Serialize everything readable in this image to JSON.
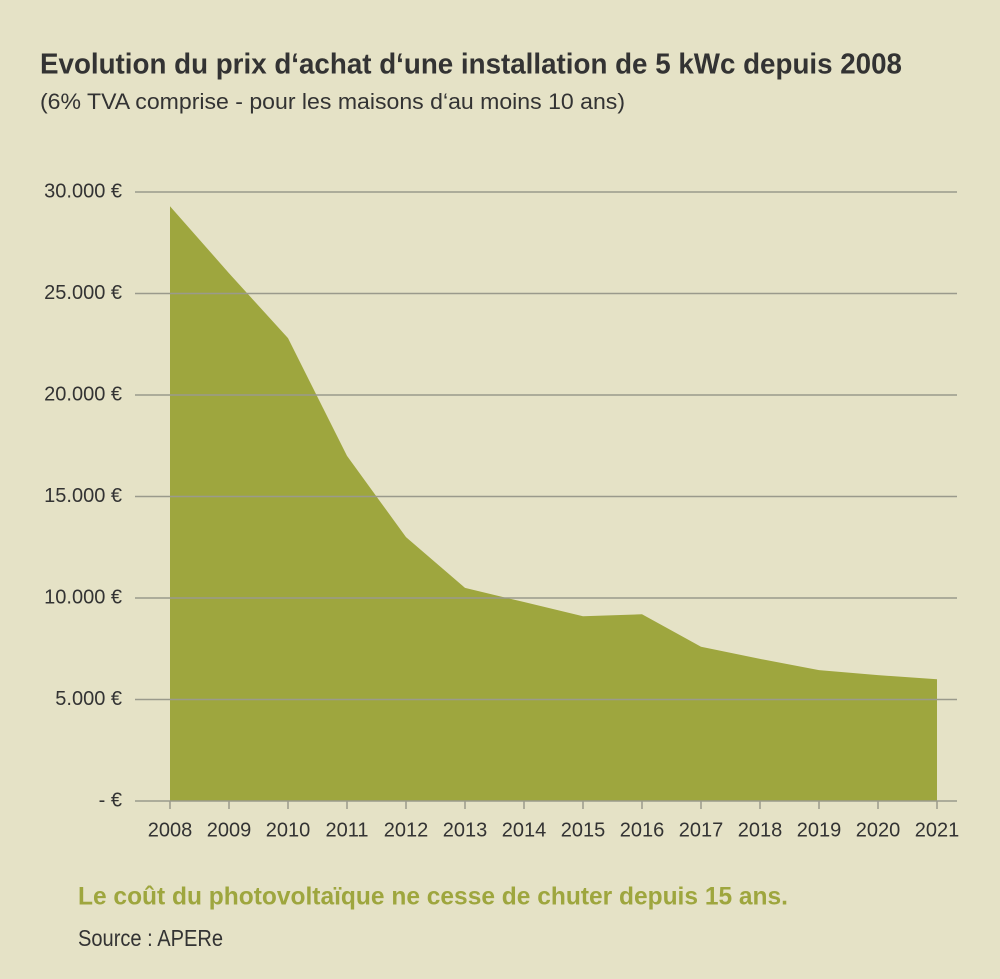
{
  "chart_data": {
    "type": "area",
    "title": "Evolution du prix d‘achat d‘une installation de 5 kWc depuis 2008",
    "subtitle": "(6% TVA comprise - pour les maisons d‘au moins 10 ans)",
    "x": [
      2008,
      2009,
      2010,
      2011,
      2012,
      2013,
      2014,
      2015,
      2016,
      2017,
      2018,
      2019,
      2020,
      2021
    ],
    "values": [
      29300,
      26000,
      22800,
      17000,
      13000,
      10500,
      9800,
      9100,
      9200,
      7600,
      7000,
      6450,
      6200,
      6000
    ],
    "color": "#9ea63e",
    "xlim": [
      2008,
      2021
    ],
    "xticks": [
      2008,
      2009,
      2010,
      2011,
      2012,
      2013,
      2014,
      2015,
      2016,
      2017,
      2018,
      2019,
      2020,
      2021
    ],
    "ylim": [
      0,
      30000
    ],
    "yticks": [
      {
        "value": 0,
        "label": "- €"
      },
      {
        "value": 5000,
        "label": "5.000 €"
      },
      {
        "value": 10000,
        "label": "10.000 €"
      },
      {
        "value": 15000,
        "label": "15.000 €"
      },
      {
        "value": 20000,
        "label": "20.000 €"
      },
      {
        "value": 25000,
        "label": "25.000 €"
      },
      {
        "value": 30000,
        "label": "30.000 €"
      }
    ],
    "grid": true,
    "annotation": "Le coût du photovoltaïque ne cesse de chuter depuis 15 ans.",
    "source": "Source : APERe"
  }
}
